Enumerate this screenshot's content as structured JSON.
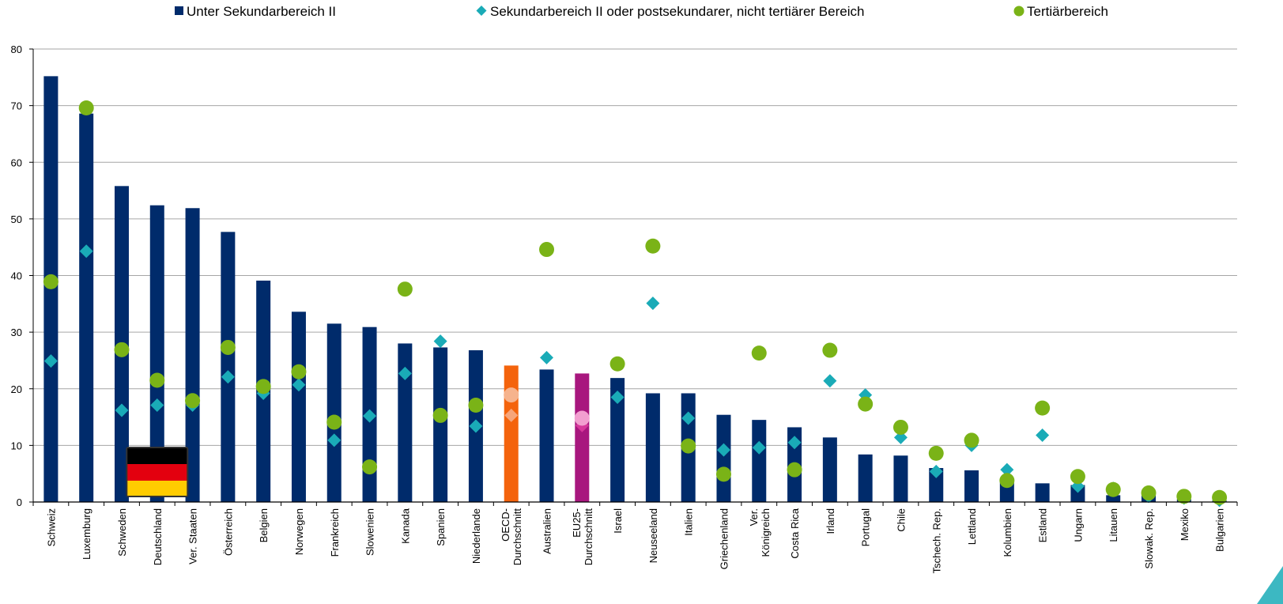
{
  "chart_data": {
    "type": "bar",
    "title": "",
    "xlabel": "",
    "ylabel": "",
    "ylim": [
      0,
      80
    ],
    "yticks": [
      0,
      10,
      20,
      30,
      40,
      50,
      60,
      70,
      80
    ],
    "grid": "horizontal",
    "legend_position": "top",
    "categories": [
      "Schweiz",
      "Luxemburg",
      "Schweden",
      "Deutschland",
      "Ver. Staaten",
      "Österreich",
      "Belgien",
      "Norwegen",
      "Frankreich",
      "Slowenien",
      "Kanada",
      "Spanien",
      "Niederlande",
      "OECD-\nDurchschnitt",
      "Australien",
      "EU25-\nDurchschnitt",
      "Israel",
      "Neuseeland",
      "Italien",
      "Griechenland",
      "Ver.\nKönigreich",
      "Costa Rica",
      "Irland",
      "Portugal",
      "Chile",
      "Tschech. Rep.",
      "Lettland",
      "Kolumbien",
      "Estland",
      "Ungarn",
      "Litauen",
      "Slowak. Rep.",
      "Mexiko",
      "Bulgarien"
    ],
    "highlight": {
      "OECD-\nDurchschnitt": {
        "bar": "#f4630c",
        "marker": "#f6b38d",
        "diamond": "#f6a57a"
      },
      "EU25-\nDurchschnitt": {
        "bar": "#a8177e",
        "marker": "#f29fd0",
        "diamond": "#d6389b"
      }
    },
    "flag_category": "Deutschland",
    "series": [
      {
        "name": "Unter Sekundarbereich II",
        "marker": "bar",
        "color": "#002b6b",
        "values": [
          75.2,
          68.6,
          55.8,
          52.4,
          51.9,
          47.7,
          39.1,
          33.6,
          31.5,
          30.9,
          28.0,
          27.3,
          26.8,
          24.1,
          23.4,
          22.7,
          21.9,
          19.2,
          19.2,
          15.4,
          14.5,
          13.2,
          11.4,
          8.4,
          8.2,
          6.0,
          5.6,
          4.0,
          3.3,
          3.0,
          1.2,
          1.2,
          0.5,
          0.3
        ]
      },
      {
        "name": "Sekundarbereich II oder postsekundarer, nicht tertiärer Bereich",
        "marker": "diamond",
        "color": "#1aabb7",
        "values": [
          24.9,
          44.3,
          16.2,
          17.1,
          17.1,
          22.1,
          19.2,
          20.7,
          10.9,
          15.2,
          22.7,
          28.4,
          13.4,
          15.3,
          25.5,
          13.5,
          18.5,
          35.1,
          14.8,
          9.2,
          9.6,
          10.5,
          21.4,
          18.9,
          11.4,
          5.4,
          10.0,
          5.7,
          11.8,
          2.8,
          2.4,
          1.0,
          0.7,
          0.3
        ]
      },
      {
        "name": "Tertiärbereich",
        "marker": "circle",
        "color": "#7ab317",
        "values": [
          38.9,
          69.6,
          26.9,
          21.5,
          17.9,
          27.3,
          20.4,
          23.0,
          14.1,
          6.2,
          37.6,
          15.3,
          17.1,
          18.9,
          44.6,
          14.8,
          24.4,
          45.2,
          9.9,
          4.9,
          26.3,
          5.7,
          26.8,
          17.3,
          13.2,
          8.6,
          10.9,
          3.8,
          16.6,
          4.5,
          2.2,
          1.6,
          1.0,
          0.8
        ]
      }
    ]
  }
}
